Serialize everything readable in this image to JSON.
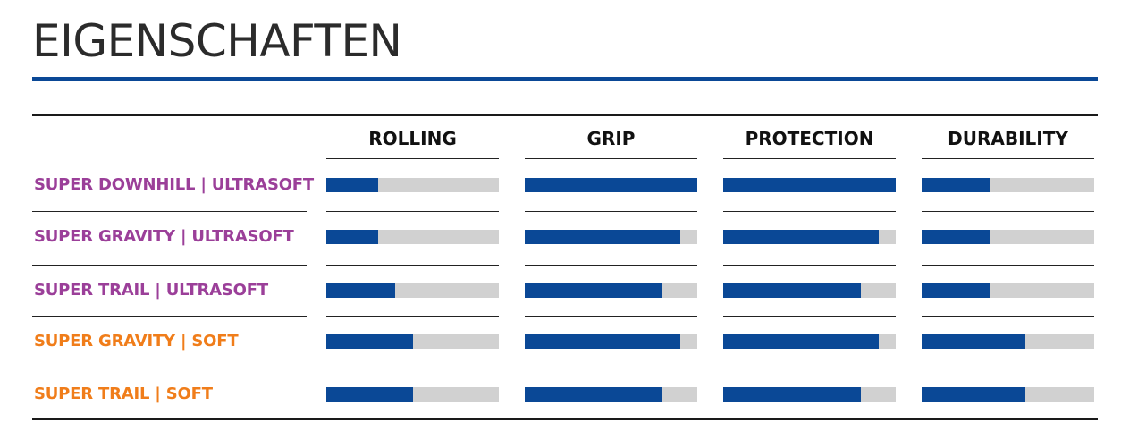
{
  "title": "EIGENSCHAFTEN",
  "colors": {
    "accent": "#0a4896",
    "track": "#d1d1d1",
    "ultrasoft": "#9b3f99",
    "soft": "#f07d1a"
  },
  "chart_data": {
    "type": "bar",
    "orientation": "horizontal",
    "categories": [
      "ROLLING",
      "GRIP",
      "PROTECTION",
      "DURABILITY"
    ],
    "xlim": [
      0,
      1
    ],
    "rows": [
      {
        "label": "SUPER DOWNHILL | ULTRASOFT",
        "color": "#9b3f99",
        "values": [
          0.3,
          1.0,
          1.0,
          0.4
        ]
      },
      {
        "label": "SUPER GRAVITY | ULTRASOFT",
        "color": "#9b3f99",
        "values": [
          0.3,
          0.9,
          0.9,
          0.4
        ]
      },
      {
        "label": "SUPER TRAIL | ULTRASOFT",
        "color": "#9b3f99",
        "values": [
          0.4,
          0.8,
          0.8,
          0.4
        ]
      },
      {
        "label": "SUPER GRAVITY | SOFT",
        "color": "#f07d1a",
        "values": [
          0.5,
          0.9,
          0.9,
          0.6
        ]
      },
      {
        "label": "SUPER TRAIL | SOFT",
        "color": "#f07d1a",
        "values": [
          0.5,
          0.8,
          0.8,
          0.6
        ]
      }
    ]
  }
}
